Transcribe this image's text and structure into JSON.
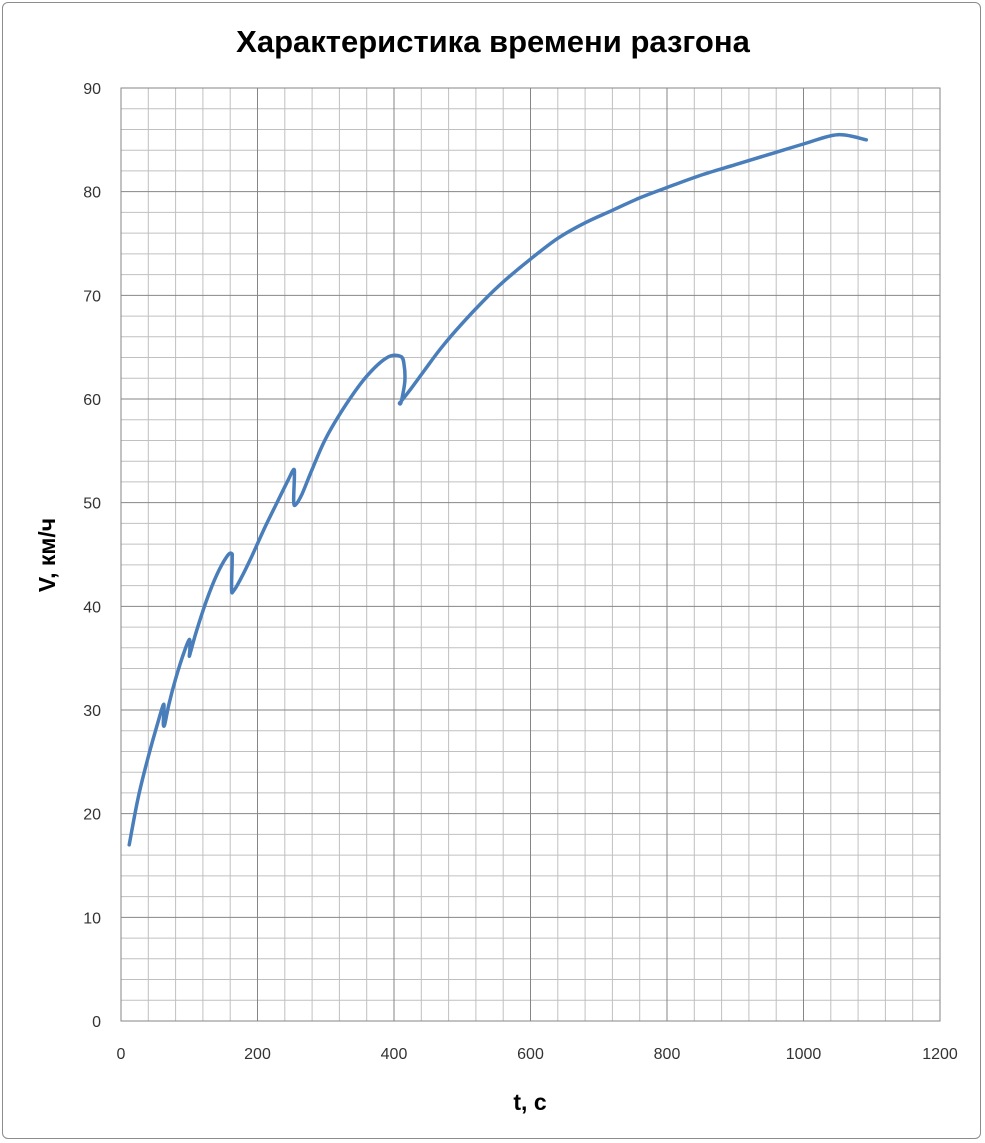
{
  "chart_data": {
    "type": "line",
    "title": "Характеристика времени разгона",
    "xlabel": "t, с",
    "ylabel": "V, км/ч",
    "xlim": [
      0,
      1200
    ],
    "ylim": [
      0,
      90
    ],
    "x_ticks": [
      "0",
      "200",
      "400",
      "600",
      "800",
      "1000",
      "1200"
    ],
    "y_ticks": [
      "0",
      "10",
      "20",
      "30",
      "40",
      "50",
      "60",
      "70",
      "80",
      "90"
    ],
    "grid": true,
    "legend": "none",
    "line_color": "#4a7ebb",
    "series": [
      {
        "x": [
          12,
          25,
          40,
          55,
          62,
          63,
          62,
          64,
          70,
          80,
          92,
          100,
          101,
          100,
          102,
          110,
          125,
          140,
          155,
          162,
          163,
          162,
          165,
          175,
          190,
          210,
          230,
          245,
          253,
          254,
          253,
          256,
          265,
          280,
          300,
          330,
          360,
          390,
          410,
          415,
          416,
          413,
          410,
          408,
          412,
          425,
          445,
          470,
          500,
          530,
          560,
          600,
          640,
          680,
          720,
          760,
          800,
          850,
          900,
          950,
          1000,
          1050,
          1092
        ],
        "y": [
          17,
          21.5,
          25.5,
          29,
          30.5,
          30.1,
          28.7,
          28.6,
          30.5,
          33,
          35.5,
          36.8,
          35.9,
          35.2,
          35.6,
          37.5,
          40.5,
          43,
          44.8,
          45.1,
          44.5,
          41.6,
          41.5,
          42.6,
          44.6,
          47.5,
          50.2,
          52.2,
          53.2,
          52.5,
          50.1,
          49.8,
          50.8,
          53.2,
          56.2,
          59.5,
          62.2,
          64,
          64.1,
          63.2,
          61.8,
          60.5,
          59.6,
          59.6,
          59.9,
          61,
          62.8,
          65,
          67.3,
          69.4,
          71.3,
          73.5,
          75.5,
          77,
          78.2,
          79.4,
          80.4,
          81.6,
          82.6,
          83.6,
          84.6,
          85.5,
          85
        ]
      }
    ]
  }
}
